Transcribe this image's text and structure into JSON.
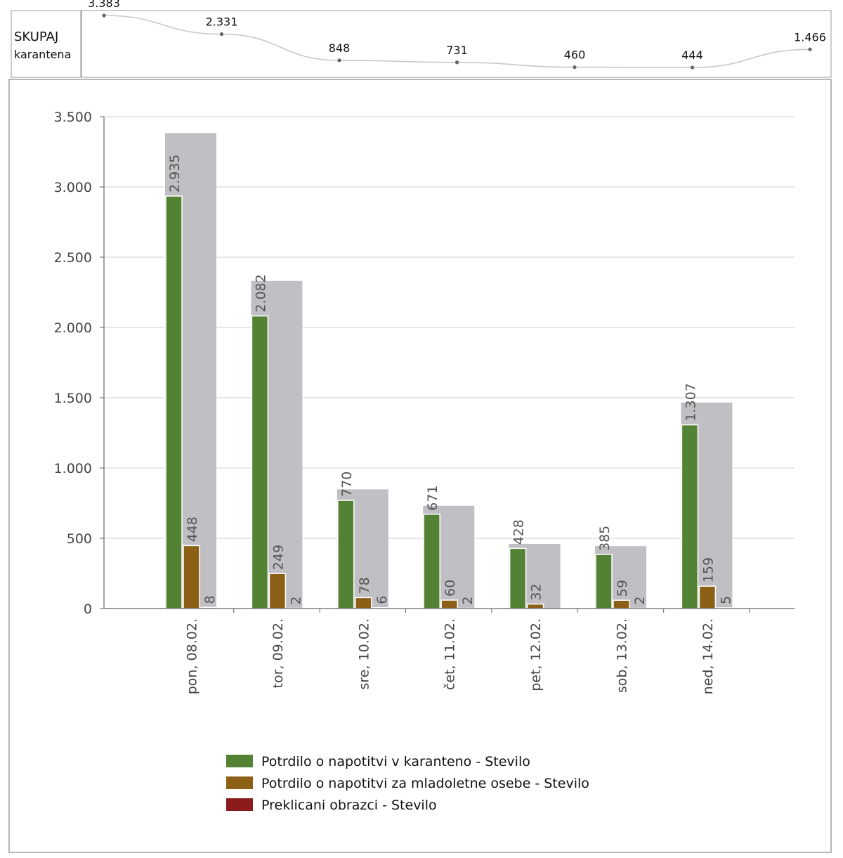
{
  "summary": {
    "title": "SKUPAJ",
    "subtitle": "karantena",
    "line_color": "#c8c8c8",
    "values_label": [
      "3.383",
      "2.331",
      "848",
      "731",
      "460",
      "444",
      "1.466"
    ],
    "values": [
      3383,
      2331,
      848,
      731,
      460,
      444,
      1466
    ]
  },
  "chart_data": {
    "type": "bar",
    "categories": [
      "pon, 08.02.",
      "tor, 09.02.",
      "sre, 10.02.",
      "čet, 11.02.",
      "pet, 12.02.",
      "sob, 13.02.",
      "ned, 14.02."
    ],
    "ylim": [
      0,
      3500
    ],
    "yticks": [
      0,
      500,
      1000,
      1500,
      2000,
      2500,
      3000,
      3500
    ],
    "ytick_labels": [
      "0",
      "500",
      "1.000",
      "1.500",
      "2.000",
      "2.500",
      "3.000",
      "3.500"
    ],
    "grid": true,
    "legend_position": "bottom",
    "total_bar_color": "#c0c0c4",
    "totals": [
      3383,
      2331,
      848,
      731,
      460,
      444,
      1466
    ],
    "series": [
      {
        "name": "Potrdilo o napotitvi v karanteno - Stevilo",
        "color": "#548235",
        "values": [
          2935,
          2082,
          770,
          671,
          428,
          385,
          1307
        ],
        "labels": [
          "2.935",
          "2.082",
          "770",
          "671",
          "428",
          "385",
          "1.307"
        ]
      },
      {
        "name": "Potrdilo o napotitvi za mladoletne osebe - Stevilo",
        "color": "#8c5f17",
        "values": [
          448,
          249,
          78,
          60,
          32,
          59,
          159
        ],
        "labels": [
          "448",
          "249",
          "78",
          "60",
          "32",
          "59",
          "159"
        ]
      },
      {
        "name": "Preklicani obrazci - Stevilo",
        "color": "#8b1a1a",
        "values": [
          8,
          2,
          6,
          2,
          0,
          2,
          5
        ],
        "labels": [
          "8",
          "2",
          "6",
          "2",
          "",
          "2",
          "5"
        ]
      }
    ]
  }
}
